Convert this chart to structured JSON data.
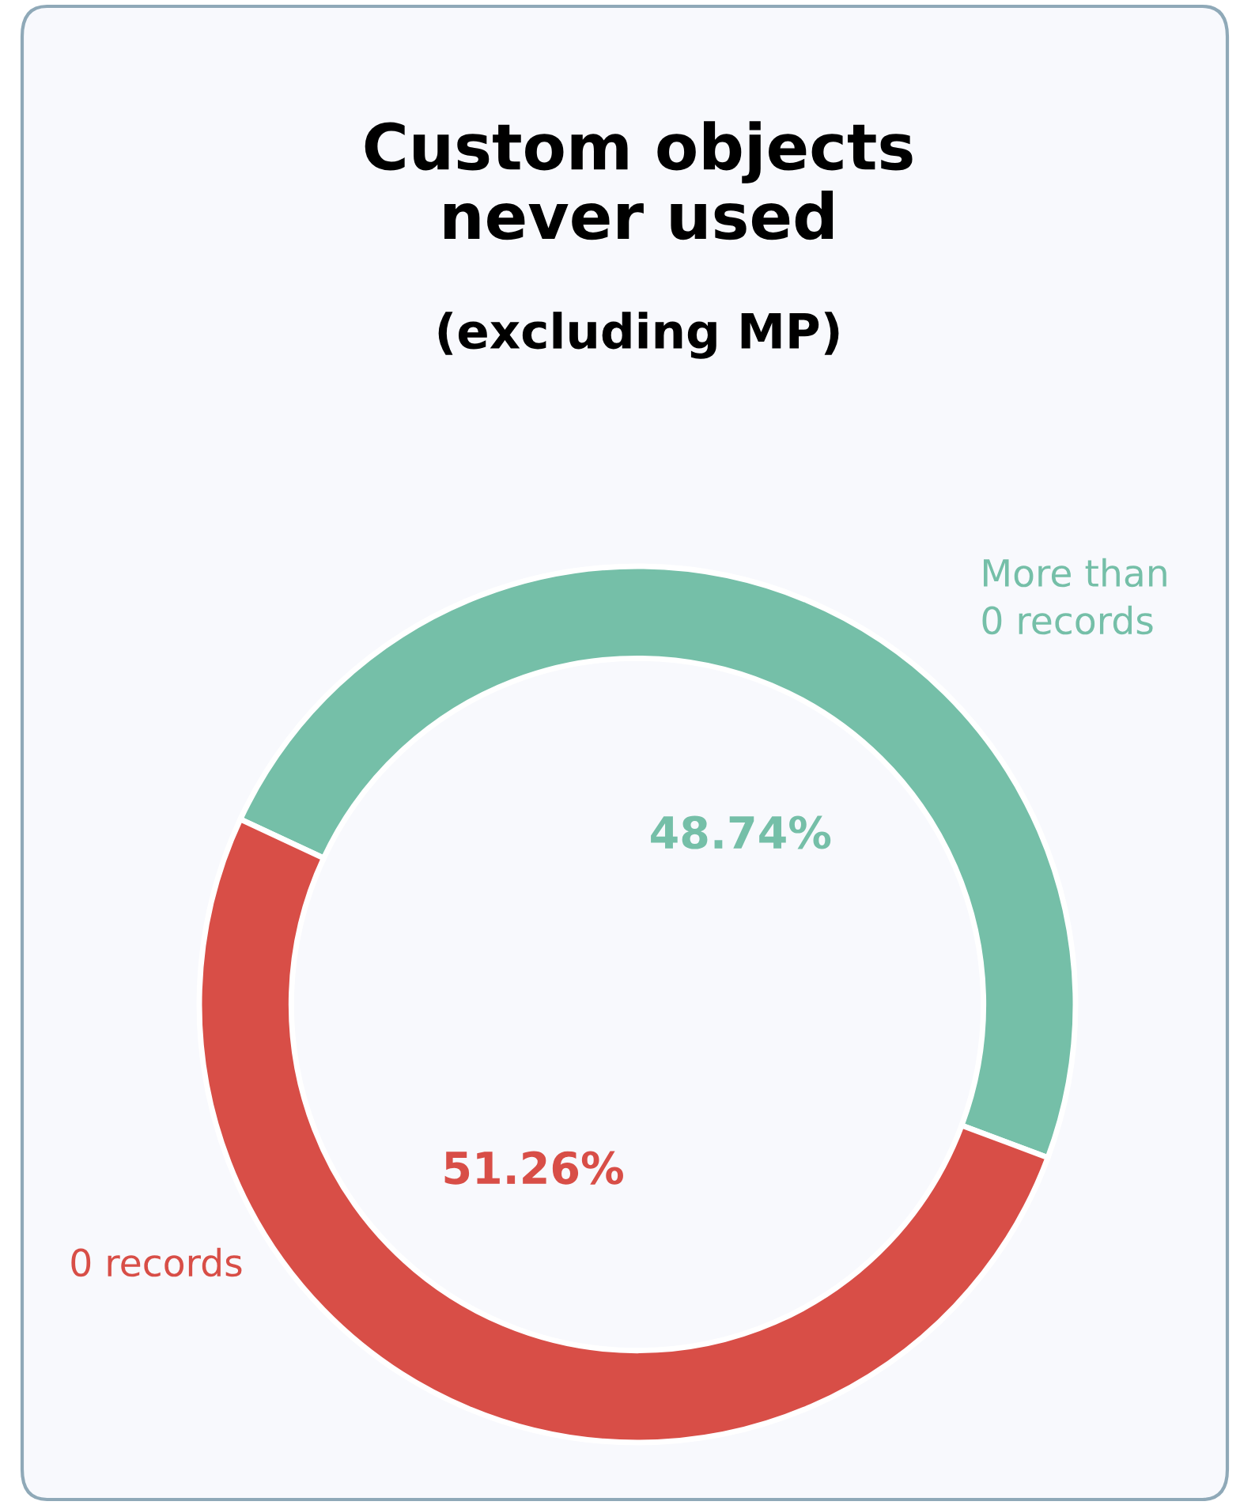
{
  "chart_data": {
    "type": "donut",
    "title": "Custom objects\nnever used",
    "subtitle": "(excluding MP)",
    "categories": [
      "More than\n0 records",
      "0 records"
    ],
    "values": [
      48.74,
      51.26
    ],
    "colors": [
      "#75bfa8",
      "#d84e47"
    ],
    "value_labels": [
      "48.74%",
      "51.26%"
    ],
    "legend": false
  }
}
